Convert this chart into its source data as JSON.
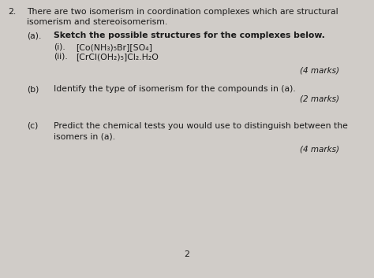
{
  "background_color": "#d0ccc8",
  "text_color": "#1a1a1a",
  "page_number": "2",
  "question_number": "2.",
  "intro_line1": "There are two isomerism in coordination complexes which are structural",
  "intro_line2": "isomerism and stereoisomerism.",
  "part_a_label": "(a).",
  "part_a_text": "Sketch the possible structures for the complexes below.",
  "part_a_i_label": "(i).",
  "part_a_i_text": "[Co(NH₃)₅Br][SO₄]",
  "part_a_ii_label": "(ii).",
  "part_a_ii_text": "[CrCl(OH₂)₅]Cl₂.H₂O",
  "part_a_marks": "(4 marks)",
  "part_b_label": "(b)",
  "part_b_text": "Identify the type of isomerism for the compounds in (a).",
  "part_b_marks": "(2 marks)",
  "part_c_label": "(c)",
  "part_c_line1": "Predict the chemical tests you would use to distinguish between the",
  "part_c_line2": "isomers in (a).",
  "part_c_marks": "(4 marks)",
  "font_size": 7.8,
  "font_size_marks": 7.5
}
